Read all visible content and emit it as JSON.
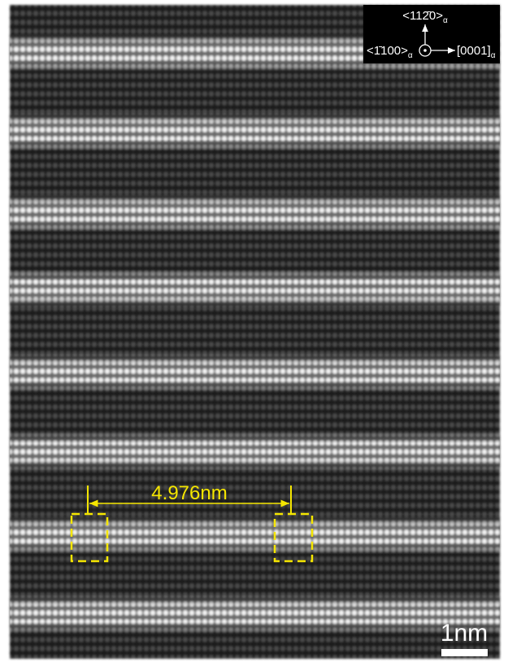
{
  "orientation": {
    "up": {
      "text": "<112̄0>",
      "subscript": "α"
    },
    "left": {
      "text": "<1̄100>",
      "subscript": "α"
    },
    "right": {
      "text": "[0001]",
      "subscript": "α"
    }
  },
  "measurement": {
    "label": "4.976nm"
  },
  "scale_bar": {
    "label": "1nm"
  }
}
